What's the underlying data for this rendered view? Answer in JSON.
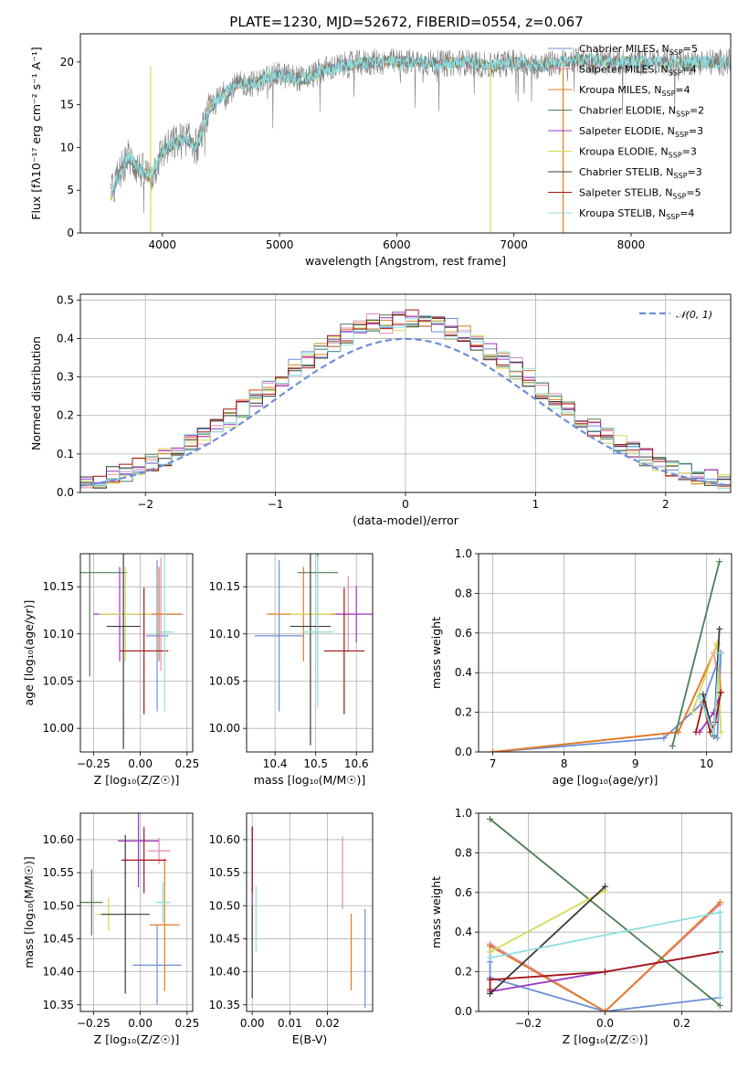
{
  "figure": {
    "title": "PLATE=1230, MJD=52672, FIBERID=0554, z=0.067"
  },
  "series_colors": [
    "#6c8ed8",
    "#e58ab5",
    "#e07b20",
    "#4f7f55",
    "#9b37c4",
    "#d8d85a",
    "#3a3a3a",
    "#a51515",
    "#8edfe0"
  ],
  "legend_main": [
    {
      "text": "Chabrier MILES, N",
      "sub": "SSP",
      "tail": "=5"
    },
    {
      "text": "Salpeter MILES, N",
      "sub": "SSP",
      "tail": "=4"
    },
    {
      "text": "Kroupa MILES, N",
      "sub": "SSP",
      "tail": "=4"
    },
    {
      "text": "Chabrier ELODIE, N",
      "sub": "SSP",
      "tail": "=2"
    },
    {
      "text": "Salpeter ELODIE, N",
      "sub": "SSP",
      "tail": "=3"
    },
    {
      "text": "Kroupa ELODIE, N",
      "sub": "SSP",
      "tail": "=3"
    },
    {
      "text": "Chabrier STELIB, N",
      "sub": "SSP",
      "tail": "=3"
    },
    {
      "text": "Salpeter STELIB, N",
      "sub": "SSP",
      "tail": "=5"
    },
    {
      "text": "Kroupa STELIB, N",
      "sub": "SSP",
      "tail": "=4"
    }
  ],
  "chart_data": [
    {
      "id": "spectrum",
      "type": "line",
      "xlabel": "wavelength [Angstrom, rest frame]",
      "ylabel": "Flux [fλ10⁻¹⁷ erg cm⁻² s⁻¹ A⁻¹]",
      "xlim": [
        3300,
        8850
      ],
      "ylim": [
        0,
        23.3
      ],
      "xticks": [
        4000,
        5000,
        6000,
        7000,
        8000
      ],
      "yticks": [
        0,
        5,
        10,
        15,
        20
      ],
      "grid": false,
      "data_color": "#808080",
      "model_color": "#8edfe0",
      "data_knots": {
        "x": [
          3560,
          3700,
          3800,
          3900,
          4000,
          4100,
          4200,
          4300,
          4400,
          4500,
          4600,
          4700,
          4800,
          4900,
          5000,
          5200,
          5400,
          5600,
          5800,
          6000,
          6200,
          6400,
          6600,
          6800,
          7000,
          7200,
          7400,
          7600,
          7800,
          8000,
          8200,
          8400,
          8800
        ],
        "y": [
          4.5,
          9.0,
          7.5,
          6.5,
          9.5,
          10.5,
          11.0,
          10.0,
          14.5,
          16.0,
          17.0,
          17.5,
          17.5,
          18.2,
          18.5,
          18.0,
          19.2,
          19.7,
          20.0,
          20.0,
          20.0,
          19.8,
          20.0,
          19.5,
          20.0,
          19.5,
          20.0,
          20.2,
          20.0,
          20.0,
          20.0,
          20.0,
          20.0
        ]
      }
    },
    {
      "id": "residuals",
      "type": "bar",
      "xlabel": "(data-model)/error",
      "ylabel": "Normed distribution",
      "xlim": [
        -2.5,
        2.5
      ],
      "ylim": [
        0,
        0.515
      ],
      "xticks": [
        -2,
        -1,
        0,
        1,
        2
      ],
      "yticks": [
        0.0,
        0.1,
        0.2,
        0.3,
        0.4,
        0.5
      ],
      "grid": true,
      "bin_width": 0.1,
      "legend": "𝒩(0, 1)",
      "gaussian": {
        "mu": 0,
        "sigma": 1,
        "color": "#6c8ed8"
      }
    },
    {
      "id": "age_vs_Z",
      "type": "scatter",
      "xlabel": "Z [log₁₀(Z/Z☉)]",
      "ylabel": "age  [log₁₀(age/yr)]",
      "xlim": [
        -0.32,
        0.28
      ],
      "ylim": [
        9.975,
        10.185
      ],
      "xticks": [
        -0.25,
        0.0,
        0.25
      ],
      "yticks": [
        10.0,
        10.05,
        10.1,
        10.15
      ],
      "grid": true,
      "points": [
        {
          "x": 0.09,
          "y": 10.098,
          "xerr": 0.06,
          "yerr": 0.08
        },
        {
          "x": 0.11,
          "y": 10.121,
          "xerr": 0.12,
          "yerr": 0.06
        },
        {
          "x": 0.1,
          "y": 10.121,
          "xerr": 0.12,
          "yerr": 0.05
        },
        {
          "x": -0.27,
          "y": 10.165,
          "xerr": 0.2,
          "yerr": 0.11
        },
        {
          "x": -0.11,
          "y": 10.121,
          "xerr": 0.14,
          "yerr": 0.05
        },
        {
          "x": -0.08,
          "y": 10.121,
          "xerr": 0.14,
          "yerr": 0.05
        },
        {
          "x": -0.09,
          "y": 10.108,
          "xerr": 0.09,
          "yerr": 0.13
        },
        {
          "x": 0.02,
          "y": 10.082,
          "xerr": 0.13,
          "yerr": 0.067
        },
        {
          "x": 0.13,
          "y": 10.102,
          "xerr": 0.05,
          "yerr": 0.084
        }
      ]
    },
    {
      "id": "age_vs_mass",
      "type": "scatter",
      "xlabel": "mass [log₁₀(M/M☉)]",
      "ylabel": "",
      "xlim": [
        10.33,
        10.64
      ],
      "ylim": [
        9.975,
        10.185
      ],
      "xticks": [
        10.4,
        10.5,
        10.6
      ],
      "yticks": [
        10.0,
        10.05,
        10.1,
        10.15
      ],
      "grid": true,
      "points": [
        {
          "x": 10.41,
          "y": 10.098,
          "xerr": 0.06,
          "yerr": 0.08
        },
        {
          "x": 10.58,
          "y": 10.121,
          "xerr": 0.03,
          "yerr": 0.04
        },
        {
          "x": 10.47,
          "y": 10.121,
          "xerr": 0.09,
          "yerr": 0.05
        },
        {
          "x": 10.505,
          "y": 10.165,
          "xerr": 0.05,
          "yerr": 0.11
        },
        {
          "x": 10.6,
          "y": 10.121,
          "xerr": 0.05,
          "yerr": 0.03
        },
        {
          "x": 10.487,
          "y": 10.121,
          "xerr": 0.05,
          "yerr": 0.03
        },
        {
          "x": 10.487,
          "y": 10.108,
          "xerr": 0.05,
          "yerr": 0.126
        },
        {
          "x": 10.57,
          "y": 10.082,
          "xerr": 0.05,
          "yerr": 0.067
        },
        {
          "x": 10.505,
          "y": 10.102,
          "xerr": 0.04,
          "yerr": 0.08
        }
      ]
    },
    {
      "id": "weight_vs_age",
      "type": "line",
      "xlabel": "age  [log₁₀(age/yr)]",
      "ylabel": "mass weight",
      "xlim": [
        6.8,
        10.35
      ],
      "ylim": [
        0,
        1.0
      ],
      "xticks": [
        7,
        8,
        9,
        10
      ],
      "yticks": [
        0.0,
        0.2,
        0.4,
        0.6,
        0.8,
        1.0
      ],
      "grid": true,
      "series": [
        {
          "x": [
            7.0,
            9.4,
            9.95,
            10.2,
            10.15
          ],
          "y": [
            0.0,
            0.07,
            0.25,
            0.5,
            0.07
          ]
        },
        {
          "x": [
            7.0,
            9.6,
            10.1,
            10.2
          ],
          "y": [
            0.0,
            0.1,
            0.5,
            0.3
          ]
        },
        {
          "x": [
            7.0,
            9.6,
            10.15,
            10.2
          ],
          "y": [
            0.0,
            0.1,
            0.54,
            0.3
          ]
        },
        {
          "x": [
            9.52,
            10.18
          ],
          "y": [
            0.03,
            0.96
          ]
        },
        {
          "x": [
            9.9,
            10.1,
            10.2
          ],
          "y": [
            0.1,
            0.2,
            0.3
          ]
        },
        {
          "x": [
            9.8,
            10.15,
            10.2
          ],
          "y": [
            0.2,
            0.55,
            0.1
          ]
        },
        {
          "x": [
            9.95,
            10.1,
            10.18
          ],
          "y": [
            0.29,
            0.08,
            0.62
          ]
        },
        {
          "x": [
            9.85,
            9.95,
            10.05,
            10.12,
            10.2
          ],
          "y": [
            0.1,
            0.25,
            0.1,
            0.15,
            0.3
          ]
        },
        {
          "x": [
            9.9,
            10.1,
            10.18
          ],
          "y": [
            0.28,
            0.09,
            0.5
          ]
        }
      ]
    },
    {
      "id": "mass_vs_Z",
      "type": "scatter",
      "xlabel": "Z [log₁₀(Z/Z☉)]",
      "ylabel": "mass [log₁₀(M/M☉)]",
      "xlim": [
        -0.32,
        0.28
      ],
      "ylim": [
        10.34,
        10.64
      ],
      "xticks": [
        -0.25,
        0.0,
        0.25
      ],
      "yticks": [
        10.35,
        10.4,
        10.45,
        10.5,
        10.55,
        10.6
      ],
      "grid": true,
      "points": [
        {
          "x": 0.09,
          "y": 10.41,
          "xerr": 0.13,
          "yerr": 0.06
        },
        {
          "x": 0.1,
          "y": 10.583,
          "xerr": 0.06,
          "yerr": 0.02
        },
        {
          "x": 0.13,
          "y": 10.471,
          "xerr": 0.08,
          "yerr": 0.1
        },
        {
          "x": -0.26,
          "y": 10.505,
          "xerr": 0.06,
          "yerr": 0.05
        },
        {
          "x": -0.01,
          "y": 10.598,
          "xerr": 0.11,
          "yerr": 0.07
        },
        {
          "x": -0.17,
          "y": 10.487,
          "xerr": 0.07,
          "yerr": 0.025
        },
        {
          "x": -0.08,
          "y": 10.487,
          "xerr": 0.13,
          "yerr": 0.12
        },
        {
          "x": 0.02,
          "y": 10.569,
          "xerr": 0.12,
          "yerr": 0.05
        },
        {
          "x": 0.12,
          "y": 10.505,
          "xerr": 0.04,
          "yerr": 0.03
        }
      ]
    },
    {
      "id": "mass_vs_ebv",
      "type": "scatter",
      "xlabel": "E(B-V)",
      "ylabel": "",
      "xlim": [
        -0.0015,
        0.032
      ],
      "ylim": [
        10.34,
        10.64
      ],
      "xticks": [
        0.0,
        0.01,
        0.02
      ],
      "yticks": [
        10.35,
        10.4,
        10.45,
        10.5,
        10.55,
        10.6
      ],
      "grid": true,
      "points": [
        {
          "x": 0.03,
          "y": 10.42,
          "xerr": 0,
          "yerr": 0.075
        },
        {
          "x": 0.024,
          "y": 10.55,
          "xerr": 0,
          "yerr": 0.055
        },
        {
          "x": 0.0263,
          "y": 10.43,
          "xerr": 0,
          "yerr": 0.058
        },
        {
          "x": 0.0,
          "y": 10.56,
          "xerr": 0,
          "yerr": 0.06
        },
        {
          "x": 0.0,
          "y": 10.55,
          "xerr": 0,
          "yerr": 0.07
        },
        {
          "x": 0.0,
          "y": 10.47,
          "xerr": 0,
          "yerr": 0.03
        },
        {
          "x": 0.0,
          "y": 10.43,
          "xerr": 0,
          "yerr": 0.07
        },
        {
          "x": 0.0,
          "y": 10.57,
          "xerr": 0,
          "yerr": 0.05
        },
        {
          "x": 0.001,
          "y": 10.48,
          "xerr": 0,
          "yerr": 0.05
        }
      ]
    },
    {
      "id": "weight_vs_Z",
      "type": "line",
      "xlabel": "Z [log₁₀(Z/Z☉)]",
      "ylabel": "mass weight",
      "xlim": [
        -0.33,
        0.33
      ],
      "ylim": [
        0,
        1.0
      ],
      "xticks": [
        -0.2,
        0.0,
        0.2
      ],
      "yticks": [
        0.0,
        0.2,
        0.4,
        0.6,
        0.8,
        1.0
      ],
      "grid": true,
      "series": [
        {
          "x": [
            -0.3,
            -0.3,
            -0.3,
            0.0,
            0.3,
            0.3
          ],
          "y": [
            0.33,
            0.25,
            0.17,
            0.0,
            0.07,
            0.5
          ]
        },
        {
          "x": [
            -0.3,
            0.0,
            0.3
          ],
          "y": [
            0.34,
            0.0,
            0.54
          ]
        },
        {
          "x": [
            -0.3,
            0.0,
            0.3
          ],
          "y": [
            0.33,
            0.0,
            0.55
          ]
        },
        {
          "x": [
            -0.3,
            0.3
          ],
          "y": [
            0.97,
            0.03
          ]
        },
        {
          "x": [
            -0.3,
            0.0,
            0.3
          ],
          "y": [
            0.1,
            0.2,
            0.3
          ]
        },
        {
          "x": [
            -0.3,
            0.0
          ],
          "y": [
            0.3,
            0.61
          ]
        },
        {
          "x": [
            -0.3,
            0.0
          ],
          "y": [
            0.09,
            0.63
          ]
        },
        {
          "x": [
            -0.3,
            -0.3,
            0.0,
            0.3
          ],
          "y": [
            0.11,
            0.16,
            0.2,
            0.3
          ]
        },
        {
          "x": [
            -0.3,
            0.3,
            0.3
          ],
          "y": [
            0.27,
            0.5,
            0.07
          ]
        }
      ]
    }
  ]
}
